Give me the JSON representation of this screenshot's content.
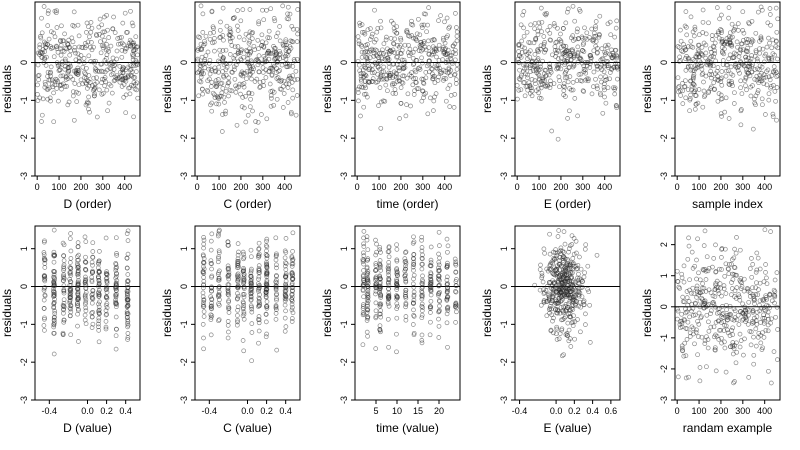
{
  "chart_data": [
    {
      "type": "scatter",
      "xlabel": "D (order)",
      "ylabel": "residuals",
      "xticks": [
        0,
        100,
        200,
        300,
        400
      ],
      "xlim": [
        -10,
        470
      ],
      "yticks": [
        -3,
        -2,
        -1,
        0
      ],
      "ylim": [
        -3,
        1.6
      ],
      "seed": 11,
      "dist": "uniform",
      "grid": false
    },
    {
      "type": "scatter",
      "xlabel": "C (order)",
      "ylabel": "residuals",
      "xticks": [
        0,
        100,
        200,
        300,
        400
      ],
      "xlim": [
        -10,
        470
      ],
      "yticks": [
        -3,
        -2,
        -1,
        0
      ],
      "ylim": [
        -3,
        1.6
      ],
      "seed": 23,
      "dist": "uniform",
      "grid": false
    },
    {
      "type": "scatter",
      "xlabel": "time (order)",
      "ylabel": "residuals",
      "xticks": [
        0,
        100,
        200,
        300,
        400
      ],
      "xlim": [
        -10,
        470
      ],
      "yticks": [
        -3,
        -2,
        -1,
        0
      ],
      "ylim": [
        -3,
        1.6
      ],
      "seed": 37,
      "dist": "uniform",
      "grid": false
    },
    {
      "type": "scatter",
      "xlabel": "E (order)",
      "ylabel": "residuals",
      "xticks": [
        0,
        100,
        200,
        300,
        400
      ],
      "xlim": [
        -10,
        470
      ],
      "yticks": [
        -3,
        -2,
        -1,
        0
      ],
      "ylim": [
        -3,
        1.6
      ],
      "seed": 41,
      "dist": "uniform",
      "grid": false
    },
    {
      "type": "scatter",
      "xlabel": "sample index",
      "ylabel": "residuals",
      "xticks": [
        0,
        100,
        200,
        300,
        400
      ],
      "xlim": [
        -10,
        470
      ],
      "yticks": [
        -3,
        -2,
        -1,
        0
      ],
      "ylim": [
        -3,
        1.6
      ],
      "seed": 53,
      "dist": "uniform",
      "grid": false
    },
    {
      "type": "scatter",
      "xlabel": "D (value)",
      "ylabel": "residuals",
      "xticks": [
        -0.4,
        0,
        0.2,
        0.4
      ],
      "xtick_labels": [
        "-0.4",
        "0.0",
        "0.2",
        "0.4"
      ],
      "xlim": [
        -0.55,
        0.55
      ],
      "yticks": [
        -3,
        -2,
        -1,
        0,
        1
      ],
      "ylim": [
        -3,
        1.6
      ],
      "seed": 61,
      "dist": "columns",
      "columns": [
        -0.45,
        -0.35,
        -0.25,
        -0.18,
        -0.1,
        -0.02,
        0.05,
        0.12,
        0.2,
        0.3,
        0.42
      ],
      "grid": false
    },
    {
      "type": "scatter",
      "xlabel": "C (value)",
      "ylabel": "residuals",
      "xticks": [
        -0.4,
        0,
        0.2,
        0.4
      ],
      "xtick_labels": [
        "-0.4",
        "0.0",
        "0.2",
        "0.4"
      ],
      "xlim": [
        -0.55,
        0.55
      ],
      "yticks": [
        -3,
        -2,
        -1,
        0,
        1
      ],
      "ylim": [
        -3,
        1.6
      ],
      "seed": 71,
      "dist": "columns",
      "columns": [
        -0.46,
        -0.38,
        -0.3,
        -0.2,
        -0.1,
        -0.04,
        0.04,
        0.12,
        0.2,
        0.3,
        0.4,
        0.47
      ],
      "grid": false
    },
    {
      "type": "scatter",
      "xlabel": "time (value)",
      "ylabel": "residuals",
      "xticks": [
        5,
        10,
        15,
        20
      ],
      "xlim": [
        0,
        25
      ],
      "yticks": [
        -3,
        -2,
        -1,
        0,
        1
      ],
      "ylim": [
        -3,
        1.6
      ],
      "seed": 83,
      "dist": "columns",
      "columns": [
        2,
        3,
        5,
        6,
        8,
        10,
        12,
        14,
        16,
        18,
        20,
        22,
        24
      ],
      "grid": false
    },
    {
      "type": "scatter",
      "xlabel": "E (value)",
      "ylabel": "residuals",
      "xticks": [
        -0.4,
        0,
        0.2,
        0.4,
        0.6
      ],
      "xtick_labels": [
        "-0.4",
        "0.0",
        "0.2",
        "0.4",
        "0.6"
      ],
      "xlim": [
        -0.45,
        0.7
      ],
      "yticks": [
        -3,
        -2,
        -1,
        0,
        1
      ],
      "ylim": [
        -3,
        1.6
      ],
      "seed": 97,
      "dist": "centered",
      "center": 0.08,
      "spread": 0.12,
      "grid": false
    },
    {
      "type": "scatter",
      "xlabel": "randam example",
      "ylabel": "residuals",
      "xticks": [
        0,
        100,
        200,
        300,
        400
      ],
      "xlim": [
        -10,
        470
      ],
      "yticks": [
        -3,
        -2,
        -1,
        0,
        1,
        2
      ],
      "ylim": [
        -3,
        2.6
      ],
      "seed": 101,
      "dist": "wide",
      "grid": false
    }
  ]
}
